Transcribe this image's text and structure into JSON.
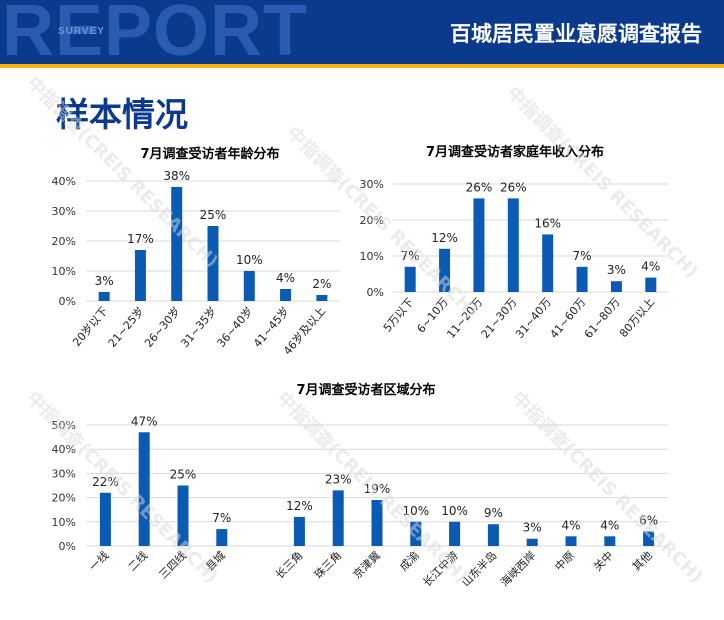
{
  "header": {
    "report_bg": "REPORT",
    "survey_bg": "SURVEY",
    "title": "百城居民置业意愿调查报告"
  },
  "page_title": "样本情况",
  "watermark": "中指调查(CREIS RESEARCH)",
  "colors": {
    "bar": "#0b5bb5",
    "header_bg": "#0b3a8c",
    "accent": "#f1b400",
    "title": "#0b3a8c"
  },
  "chart_data": [
    {
      "type": "bar",
      "title": "7月调查受访者年龄分布",
      "categories": [
        "20岁以下",
        "21~25岁",
        "26~30岁",
        "31~35岁",
        "36~40岁",
        "41~45岁",
        "46岁及以上"
      ],
      "values": [
        3,
        17,
        38,
        25,
        10,
        4,
        2
      ],
      "value_labels": [
        "3%",
        "17%",
        "38%",
        "25%",
        "10%",
        "4%",
        "2%"
      ],
      "yticks": [
        "0%",
        "10%",
        "20%",
        "30%",
        "40%"
      ],
      "ylim": [
        0,
        40
      ]
    },
    {
      "type": "bar",
      "title": "7月调查受访者家庭年收入分布",
      "categories": [
        "5万以下",
        "6~10万",
        "11~20万",
        "21~30万",
        "31~40万",
        "41~60万",
        "61~80万",
        "80万以上"
      ],
      "values": [
        7,
        12,
        26,
        26,
        16,
        7,
        3,
        4
      ],
      "value_labels": [
        "7%",
        "12%",
        "26%",
        "26%",
        "16%",
        "7%",
        "3%",
        "4%"
      ],
      "yticks": [
        "0%",
        "10%",
        "20%",
        "30%"
      ],
      "ylim": [
        0,
        30
      ]
    },
    {
      "type": "bar",
      "title": "7月调查受访者区域分布",
      "categories": [
        "一线",
        "二线",
        "三四线",
        "县城",
        "",
        "长三角",
        "珠三角",
        "京津冀",
        "成渝",
        "长江中游",
        "山东半岛",
        "海峡西岸",
        "中原",
        "关中",
        "其他"
      ],
      "values": [
        22,
        47,
        25,
        7,
        null,
        12,
        23,
        19,
        10,
        10,
        9,
        3,
        4,
        4,
        6
      ],
      "value_labels": [
        "22%",
        "47%",
        "25%",
        "7%",
        "",
        "12%",
        "23%",
        "19%",
        "10%",
        "10%",
        "9%",
        "3%",
        "4%",
        "4%",
        "6%"
      ],
      "yticks": [
        "0%",
        "10%",
        "20%",
        "30%",
        "40%",
        "50%"
      ],
      "ylim": [
        0,
        50
      ]
    }
  ]
}
